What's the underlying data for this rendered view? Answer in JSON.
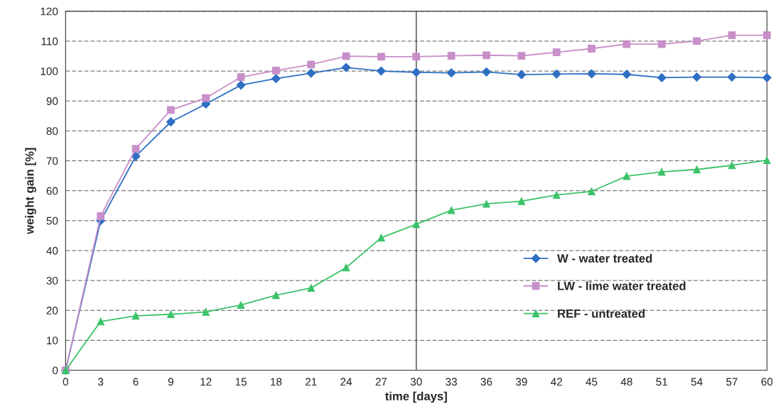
{
  "chart_data": {
    "type": "line",
    "xlabel": "time [days]",
    "ylabel": "weight gain [%]",
    "x": [
      0,
      3,
      6,
      9,
      12,
      15,
      18,
      21,
      24,
      27,
      30,
      33,
      36,
      39,
      42,
      45,
      48,
      51,
      54,
      57,
      60
    ],
    "series": [
      {
        "name": "W - water treated",
        "color": "#2e6fc4",
        "marker": "diamond",
        "values": [
          0,
          50,
          71.5,
          83,
          89,
          95.3,
          97.5,
          99.3,
          101.2,
          100,
          99.6,
          99.4,
          99.7,
          98.8,
          99,
          99.1,
          98.9,
          97.8,
          98,
          98,
          97.8
        ]
      },
      {
        "name": "LW - lime water treated",
        "color": "#c88fc8",
        "marker": "square",
        "values": [
          0,
          51.5,
          74,
          87,
          91,
          98,
          100.2,
          102.2,
          105,
          104.8,
          104.8,
          105.1,
          105.3,
          105.1,
          106.3,
          107.5,
          109,
          109,
          110,
          112,
          112
        ]
      },
      {
        "name": "REF - untreated",
        "color": "#3cc26a",
        "marker": "triangle",
        "values": [
          0,
          16.3,
          18.2,
          18.7,
          19.5,
          21.8,
          25.1,
          27.5,
          34.3,
          44.3,
          48.8,
          53.5,
          55.6,
          56.5,
          58.6,
          59.8,
          64.9,
          66.3,
          67.1,
          68.5,
          70.2
        ]
      }
    ],
    "xlim": [
      0,
      60
    ],
    "xticks": [
      0,
      3,
      6,
      9,
      12,
      15,
      18,
      21,
      24,
      27,
      30,
      33,
      36,
      39,
      42,
      45,
      48,
      51,
      54,
      57,
      60
    ],
    "ylim": [
      0,
      120
    ],
    "yticks": [
      0,
      10,
      20,
      30,
      40,
      50,
      60,
      70,
      80,
      90,
      100,
      110,
      120
    ],
    "ref_lines": [
      {
        "axis": "x",
        "value": 30,
        "color": "#333333"
      }
    ],
    "grid": "y",
    "legend": "lower right"
  }
}
